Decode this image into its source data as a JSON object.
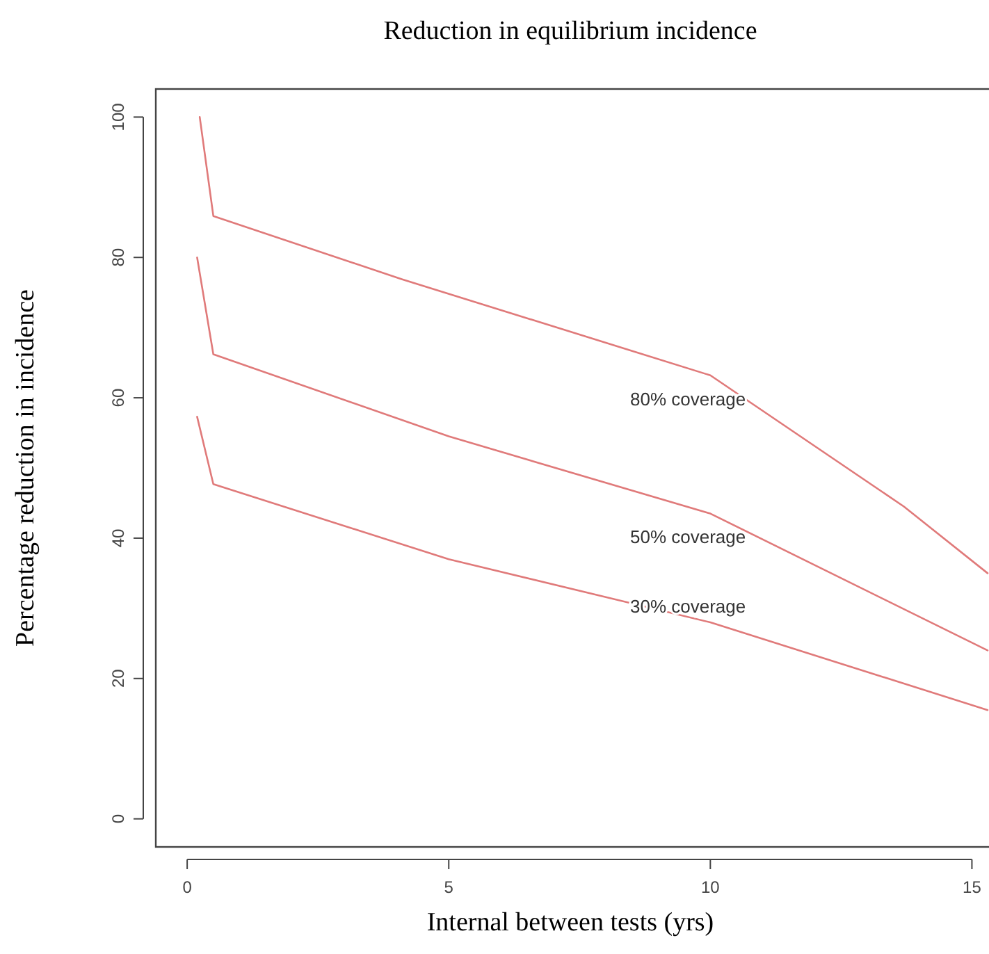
{
  "chart_data": {
    "type": "line",
    "title": "Reduction in equilibrium incidence",
    "xlabel": "Internal between tests (yrs)",
    "ylabel": "Percentage reduction  in incidence",
    "xlim": [
      -0.6,
      15.3
    ],
    "ylim": [
      -4,
      104
    ],
    "xticks": [
      0,
      5,
      10,
      15
    ],
    "yticks": [
      0,
      20,
      40,
      60,
      80,
      100
    ],
    "grid": false,
    "marker": "none",
    "line_style": "solid",
    "series": [
      {
        "color": "#e07a7a",
        "x": [
          0.24,
          0.5,
          4.1,
          10,
          13.7,
          15.3
        ],
        "values": [
          100,
          85.9,
          76.9,
          63.2,
          44.5,
          35
        ]
      },
      {
        "color": "#e07a7a",
        "x": [
          0.19,
          0.5,
          5,
          10,
          15.3
        ],
        "values": [
          80,
          66.2,
          54.5,
          43.5,
          24
        ]
      },
      {
        "color": "#e07a7a",
        "x": [
          0.19,
          0.5,
          5,
          10,
          15.3
        ],
        "values": [
          57.3,
          47.7,
          37,
          28,
          15.5
        ]
      }
    ],
    "annotations": [
      "80% coverage",
      "50% coverage",
      "30% coverage"
    ]
  }
}
